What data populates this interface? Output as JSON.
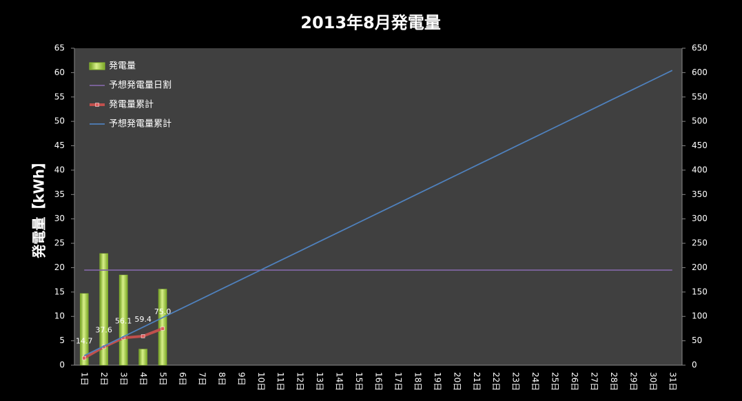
{
  "chart_data": {
    "type": "bar",
    "title": "2013年8月発電量",
    "y_label": "発電量【kWh】",
    "categories": [
      "1日",
      "2日",
      "3日",
      "4日",
      "5日",
      "6日",
      "7日",
      "8日",
      "9日",
      "10日",
      "11日",
      "12日",
      "13日",
      "14日",
      "15日",
      "16日",
      "17日",
      "18日",
      "19日",
      "20日",
      "21日",
      "22日",
      "23日",
      "24日",
      "25日",
      "26日",
      "27日",
      "28日",
      "29日",
      "30日",
      "31日"
    ],
    "ylim": [
      0,
      65
    ],
    "yticks": [
      0,
      5,
      10,
      15,
      20,
      25,
      30,
      35,
      40,
      45,
      50,
      55,
      60,
      65
    ],
    "y2lim": [
      0,
      650
    ],
    "y2ticks": [
      0,
      50,
      100,
      150,
      200,
      250,
      300,
      350,
      400,
      450,
      500,
      550,
      600,
      650
    ],
    "legend": "upper left",
    "series": [
      {
        "name": "発電量",
        "type": "bar",
        "color": "#8fc031",
        "values": [
          14.7,
          22.9,
          18.5,
          3.3,
          15.6,
          null,
          null,
          null,
          null,
          null,
          null,
          null,
          null,
          null,
          null,
          null,
          null,
          null,
          null,
          null,
          null,
          null,
          null,
          null,
          null,
          null,
          null,
          null,
          null,
          null,
          null
        ]
      },
      {
        "name": "予想発電量日割",
        "type": "line",
        "color": "#8064a2",
        "values": [
          19.5,
          19.5,
          19.5,
          19.5,
          19.5,
          19.5,
          19.5,
          19.5,
          19.5,
          19.5,
          19.5,
          19.5,
          19.5,
          19.5,
          19.5,
          19.5,
          19.5,
          19.5,
          19.5,
          19.5,
          19.5,
          19.5,
          19.5,
          19.5,
          19.5,
          19.5,
          19.5,
          19.5,
          19.5,
          19.5,
          19.5
        ]
      },
      {
        "name": "発電量累計",
        "type": "line",
        "axis": "y2",
        "color": "#c0504d",
        "markers": true,
        "values": [
          14.7,
          37.6,
          56.1,
          59.4,
          75,
          null,
          null,
          null,
          null,
          null,
          null,
          null,
          null,
          null,
          null,
          null,
          null,
          null,
          null,
          null,
          null,
          null,
          null,
          null,
          null,
          null,
          null,
          null,
          null,
          null,
          null
        ],
        "value_labels": [
          "14.7",
          "37.6",
          "56.1",
          "59.4",
          "75.0",
          null,
          null,
          null,
          null,
          null,
          null,
          null,
          null,
          null,
          null,
          null,
          null,
          null,
          null,
          null,
          null,
          null,
          null,
          null,
          null,
          null,
          null,
          null,
          null,
          null,
          null
        ]
      },
      {
        "name": "予想発電量累計",
        "type": "line",
        "axis": "y2",
        "color": "#4f81bd",
        "values": [
          19.5,
          39,
          58.5,
          78,
          97.5,
          117,
          136.5,
          156,
          175.5,
          195,
          214.5,
          234,
          253.5,
          273,
          292.5,
          312,
          331.5,
          351,
          370.5,
          390,
          409.5,
          429,
          448.5,
          468,
          487.5,
          507,
          526.5,
          546,
          565.5,
          585,
          604.5
        ]
      }
    ]
  }
}
